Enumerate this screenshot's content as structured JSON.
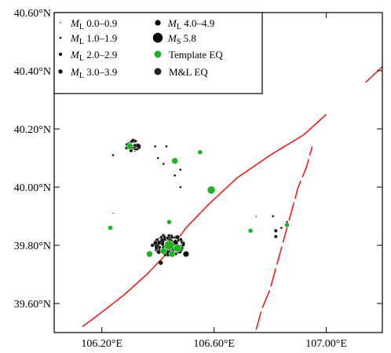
{
  "map": {
    "x_axis": {
      "range": [
        106.03,
        107.2
      ],
      "ticks": [
        106.2,
        106.6,
        107.0
      ],
      "tick_labels": [
        "106.20°E",
        "106.60°E",
        "107.00°E"
      ]
    },
    "y_axis": {
      "range": [
        39.5,
        40.6
      ],
      "ticks": [
        39.6,
        39.8,
        40.0,
        40.2,
        40.4,
        40.6
      ],
      "tick_labels": [
        "39.60°N",
        "39.80°N",
        "40.00°N",
        "40.20°N",
        "40.40°N",
        "40.60°N"
      ]
    },
    "legend": {
      "entries": [
        {
          "prefix": "M",
          "sub": "L",
          "range": "0.0–0.9",
          "color": "#000000",
          "kind": "magnitude"
        },
        {
          "prefix": "M",
          "sub": "L",
          "range": "1.0–1.9",
          "color": "#000000",
          "kind": "magnitude"
        },
        {
          "prefix": "M",
          "sub": "L",
          "range": "2.0–2.9",
          "color": "#000000",
          "kind": "magnitude"
        },
        {
          "prefix": "M",
          "sub": "L",
          "range": "3.0–3.9",
          "color": "#000000",
          "kind": "magnitude"
        },
        {
          "prefix": "M",
          "sub": "L",
          "range": "4.0–4.9",
          "color": "#000000",
          "kind": "magnitude"
        },
        {
          "prefix": "M",
          "sub": "S",
          "range": "5.8",
          "color": "#000000",
          "kind": "magnitude"
        },
        {
          "label": "Template EQ",
          "color": "#1fb31f",
          "kind": "type"
        },
        {
          "label": "M&L EQ",
          "color": "#222222",
          "kind": "type"
        }
      ]
    },
    "colors": {
      "fault": "#e8201c",
      "template_eq": "#1fb31f",
      "ml_eq": "#111111"
    },
    "faults": [
      {
        "points": [
          [
            106.13,
            39.52
          ],
          [
            106.2,
            39.57
          ],
          [
            106.28,
            39.63
          ],
          [
            106.36,
            39.7
          ],
          [
            106.44,
            39.78
          ],
          [
            106.5,
            39.86
          ],
          [
            106.58,
            39.94
          ],
          [
            106.68,
            40.03
          ],
          [
            106.8,
            40.11
          ],
          [
            106.92,
            40.18
          ],
          [
            107.0,
            40.25
          ]
        ]
      },
      {
        "points": [
          [
            107.14,
            40.36
          ],
          [
            107.24,
            40.45
          ]
        ]
      },
      {
        "points": [
          [
            106.75,
            39.51
          ],
          [
            106.77,
            39.58
          ],
          [
            106.8,
            39.65
          ],
          [
            106.82,
            39.72
          ],
          [
            106.84,
            39.79
          ],
          [
            106.86,
            39.86
          ],
          [
            106.88,
            39.93
          ],
          [
            106.9,
            40.0
          ],
          [
            106.93,
            40.07
          ],
          [
            106.95,
            40.14
          ]
        ]
      }
    ],
    "clusters": [
      {
        "center": [
          106.44,
          39.8
        ],
        "spread": [
          0.055,
          0.035
        ],
        "count": 230
      },
      {
        "center": [
          106.31,
          40.14
        ],
        "spread": [
          0.025,
          0.02
        ],
        "count": 40
      }
    ],
    "scattered_events": [
      {
        "lon": 106.24,
        "lat": 40.11,
        "mag": 1
      },
      {
        "lon": 106.39,
        "lat": 40.14,
        "mag": 1
      },
      {
        "lon": 106.43,
        "lat": 40.14,
        "mag": 1
      },
      {
        "lon": 106.4,
        "lat": 40.1,
        "mag": 1
      },
      {
        "lon": 106.42,
        "lat": 40.08,
        "mag": 1
      },
      {
        "lon": 106.48,
        "lat": 40.06,
        "mag": 1
      },
      {
        "lon": 106.46,
        "lat": 40.04,
        "mag": 1
      },
      {
        "lon": 106.48,
        "lat": 40.0,
        "mag": 1
      },
      {
        "lon": 106.24,
        "lat": 39.91,
        "mag": 0
      },
      {
        "lon": 106.75,
        "lat": 39.9,
        "mag": 0
      },
      {
        "lon": 106.81,
        "lat": 39.9,
        "mag": 1
      },
      {
        "lon": 106.82,
        "lat": 39.85,
        "mag": 2
      },
      {
        "lon": 106.82,
        "lat": 39.83,
        "mag": 2
      },
      {
        "lon": 106.84,
        "lat": 39.86,
        "mag": 1
      },
      {
        "lon": 106.86,
        "lat": 39.88,
        "mag": 1
      },
      {
        "lon": 106.44,
        "lat": 39.88,
        "mag": 3
      },
      {
        "lon": 106.41,
        "lat": 39.74,
        "mag": 3
      },
      {
        "lon": 106.5,
        "lat": 39.77,
        "mag": 4
      },
      {
        "lon": 106.38,
        "lat": 39.8,
        "mag": 2
      }
    ],
    "template_events": [
      {
        "lon": 106.3,
        "lat": 40.14,
        "size": 4
      },
      {
        "lon": 106.46,
        "lat": 40.09,
        "size": 4
      },
      {
        "lon": 106.55,
        "lat": 40.12,
        "size": 3
      },
      {
        "lon": 106.59,
        "lat": 39.99,
        "size": 5
      },
      {
        "lon": 106.23,
        "lat": 39.86,
        "size": 3
      },
      {
        "lon": 106.44,
        "lat": 39.88,
        "size": 3
      },
      {
        "lon": 106.73,
        "lat": 39.85,
        "size": 3
      },
      {
        "lon": 106.86,
        "lat": 39.87,
        "size": 3
      },
      {
        "lon": 106.37,
        "lat": 39.77,
        "size": 4
      },
      {
        "lon": 106.42,
        "lat": 39.78,
        "size": 4
      },
      {
        "lon": 106.44,
        "lat": 39.8,
        "size": 6
      },
      {
        "lon": 106.47,
        "lat": 39.79,
        "size": 5
      },
      {
        "lon": 106.45,
        "lat": 39.77,
        "size": 4
      }
    ]
  }
}
